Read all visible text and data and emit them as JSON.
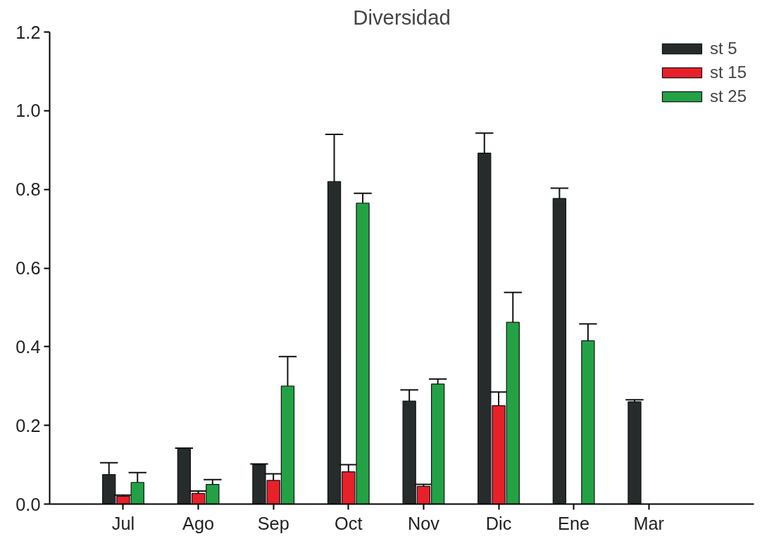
{
  "chart_data": {
    "type": "bar",
    "title": "Diversidad",
    "categories": [
      "Jul",
      "Ago",
      "Sep",
      "Oct",
      "Nov",
      "Dic",
      "Ene",
      "Mar"
    ],
    "series": [
      {
        "name": "st 5",
        "color": "#262b2c",
        "values": [
          0.075,
          0.14,
          0.1,
          0.82,
          0.262,
          0.892,
          0.777,
          0.26
        ],
        "errors": [
          [
            0.075,
            0.105
          ],
          [
            0.14,
            0.142
          ],
          [
            0.1,
            0.102
          ],
          [
            0.82,
            0.94
          ],
          [
            0.262,
            0.29
          ],
          [
            0.892,
            0.943
          ],
          [
            0.777,
            0.803
          ],
          [
            0.26,
            0.265
          ]
        ]
      },
      {
        "name": "st 15",
        "color": "#e8202a",
        "values": [
          0.02,
          0.027,
          0.06,
          0.082,
          0.045,
          0.25,
          null,
          null
        ],
        "errors": [
          [
            0.02,
            0.023
          ],
          [
            0.027,
            0.033
          ],
          [
            0.06,
            0.077
          ],
          [
            0.082,
            0.1
          ],
          [
            0.045,
            0.05
          ],
          [
            0.25,
            0.285
          ],
          null,
          null
        ]
      },
      {
        "name": "st 25",
        "color": "#22a245",
        "values": [
          0.055,
          0.05,
          0.3,
          0.765,
          0.305,
          0.462,
          0.415,
          null
        ],
        "errors": [
          [
            0.055,
            0.08
          ],
          [
            0.05,
            0.062
          ],
          [
            0.3,
            0.375
          ],
          [
            0.765,
            0.79
          ],
          [
            0.305,
            0.318
          ],
          [
            0.462,
            0.538
          ],
          [
            0.415,
            0.458
          ],
          null
        ]
      }
    ],
    "ylim": [
      0,
      1.2
    ],
    "yticks": [
      {
        "value": 0,
        "label": "0.0"
      },
      {
        "value": 0.2,
        "label": "0.2"
      },
      {
        "value": 0.4,
        "label": "0.4"
      },
      {
        "value": 0.6,
        "label": "0.6"
      },
      {
        "value": 0.8,
        "label": "0.8"
      },
      {
        "value": 1.0,
        "label": "1.0"
      },
      {
        "value": 1.2,
        "label": "1.2"
      }
    ],
    "grid": false,
    "legend": "top right"
  }
}
